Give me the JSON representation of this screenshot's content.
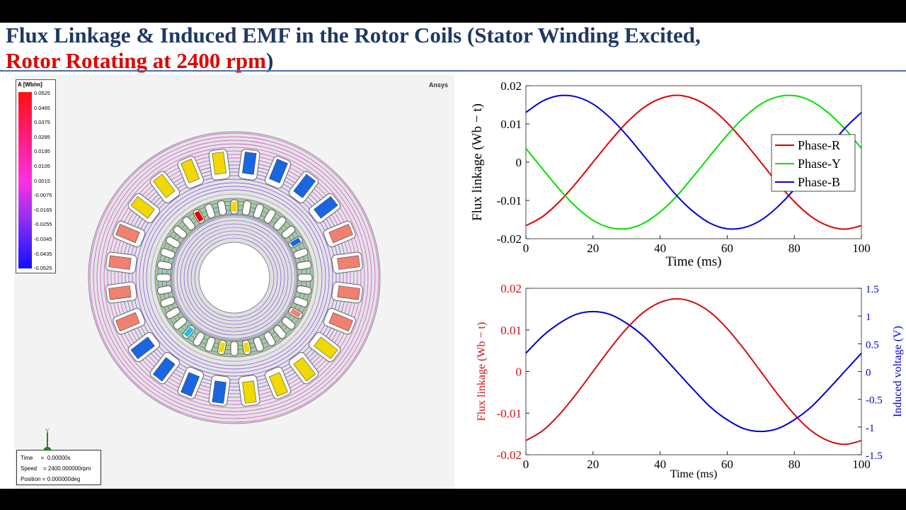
{
  "title": {
    "line1": "Flux Linkage & Induced EMF in the Rotor Coils (Stator Winding Excited,",
    "line2_red": "Rotor Rotating at 2400 rpm",
    "line2_end": ")"
  },
  "simulation": {
    "brand": "Ansys",
    "colorbar": {
      "title": "A [Wb/m]",
      "labels": [
        "0.0525",
        "0.0465",
        "0.0375",
        "0.0285",
        "0.0195",
        "0.0105",
        "0.0015",
        "-0.0075",
        "-0.0165",
        "-0.0255",
        "-0.0345",
        "-0.0435",
        "-0.0525"
      ]
    },
    "info": {
      "time": "Time     =  0.00000s",
      "speed": "Speed    = 2400.000000rpm",
      "position": "Position = 0.000000deg"
    },
    "axis_label": "Y"
  },
  "chart_data": [
    {
      "type": "line",
      "xlabel": "Time (ms)",
      "ylabel": "Flux linkage (Wb − t)",
      "xlim": [
        0,
        100
      ],
      "ylim": [
        -0.02,
        0.02
      ],
      "xticks": [
        "0",
        "20",
        "40",
        "60",
        "80",
        "100"
      ],
      "yticks": [
        "0.02",
        "0.01",
        "0",
        "-0.01",
        "-0.02"
      ],
      "grid": false,
      "legend": "top-right",
      "x": [
        0,
        5,
        10,
        15,
        20,
        25,
        30,
        35,
        40,
        45,
        50,
        55,
        60,
        65,
        70,
        75,
        80,
        85,
        90,
        95,
        100
      ],
      "series": [
        {
          "name": "Phase-R",
          "color": "#e00000",
          "values": [
            -0.0166,
            -0.0142,
            -0.0103,
            -0.0054,
            0,
            0.0054,
            0.0103,
            0.0142,
            0.0166,
            0.0175,
            0.0166,
            0.0142,
            0.0103,
            0.0054,
            0,
            -0.0054,
            -0.0103,
            -0.0142,
            -0.0166,
            -0.0175,
            -0.0166
          ]
        },
        {
          "name": "Phase-Y",
          "color": "#00e000",
          "values": [
            0.0036,
            -0.0018,
            -0.0071,
            -0.0117,
            -0.0152,
            -0.0171,
            -0.0174,
            -0.016,
            -0.013,
            -0.0088,
            -0.0036,
            0.0018,
            0.0071,
            0.0117,
            0.0152,
            0.0171,
            0.0174,
            0.016,
            0.013,
            0.0088,
            0.0036
          ]
        },
        {
          "name": "Phase-B",
          "color": "#0000dd",
          "values": [
            0.013,
            0.016,
            0.0174,
            0.0171,
            0.0152,
            0.0117,
            0.0071,
            0.0018,
            -0.0036,
            -0.0088,
            -0.013,
            -0.016,
            -0.0174,
            -0.0171,
            -0.0152,
            -0.0117,
            -0.0071,
            -0.0018,
            0.0036,
            0.0088,
            0.013
          ]
        }
      ]
    },
    {
      "type": "line",
      "xlabel": "Time (ms)",
      "ylabel": "Flux linkage (Wb − t)",
      "y2label": "Induced voltage (V)",
      "xlim": [
        0,
        100
      ],
      "ylim": [
        -0.02,
        0.02
      ],
      "y2lim": [
        -1.5,
        1.5
      ],
      "xticks": [
        "0",
        "20",
        "40",
        "60",
        "80",
        "100"
      ],
      "yticks": [
        "0.02",
        "0.01",
        "0",
        "-0.01",
        "-0.02"
      ],
      "y2ticks": [
        "1.5",
        "1",
        "0.5",
        "0",
        "-0.5",
        "-1",
        "-1.5"
      ],
      "grid": false,
      "x": [
        0,
        5,
        10,
        15,
        20,
        25,
        30,
        35,
        40,
        45,
        50,
        55,
        60,
        65,
        70,
        75,
        80,
        85,
        90,
        95,
        100
      ],
      "series": [
        {
          "axis": "left",
          "color": "#d01010",
          "values": [
            -0.0166,
            -0.0142,
            -0.0103,
            -0.0054,
            0,
            0.0054,
            0.0103,
            0.0142,
            0.0166,
            0.0175,
            0.0166,
            0.0142,
            0.0103,
            0.0054,
            0,
            -0.0054,
            -0.0103,
            -0.0142,
            -0.0166,
            -0.0175,
            -0.0166
          ]
        },
        {
          "axis": "right",
          "color": "#0000cc",
          "values": [
            0.33,
            0.64,
            0.87,
            1.03,
            1.08,
            1.03,
            0.87,
            0.64,
            0.33,
            0,
            -0.33,
            -0.64,
            -0.87,
            -1.03,
            -1.08,
            -1.03,
            -0.87,
            -0.64,
            -0.33,
            0,
            0.33
          ]
        }
      ]
    }
  ]
}
